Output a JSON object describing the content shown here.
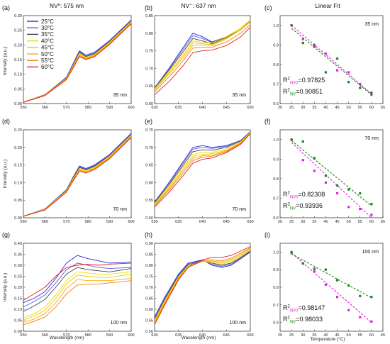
{
  "titles": {
    "col1": "NV⁰: 575 nm",
    "col2": "NV⁻: 637 nm",
    "col3": "Linear Fit"
  },
  "axis_labels": {
    "intensity": "Intensity (a.u.)",
    "wavelength": "Wavelength (nm)",
    "temperature": "Temperature (°C)"
  },
  "legend": {
    "entries": [
      "25°C",
      "30°C",
      "35°C",
      "40°C",
      "45°C",
      "50°C",
      "55°C",
      "60°C"
    ],
    "colors": [
      "#2a2ad8",
      "#5a5ae6",
      "#444444",
      "#e8e000",
      "#f0c800",
      "#f5b000",
      "#f08010",
      "#e02020"
    ]
  },
  "colors": {
    "nv0": "#e020e0",
    "nvm": "#1a8a1a"
  },
  "chart_data": [
    {
      "panel": "(a)",
      "type": "line",
      "thickness": "35 nm",
      "xlim": [
        550,
        600
      ],
      "ylim": [
        0,
        0.3
      ],
      "xticks": [
        550,
        560,
        570,
        580,
        590,
        600
      ],
      "yticks": [
        0,
        0.05,
        0.1,
        0.15,
        0.2,
        0.25,
        0.3
      ],
      "x": [
        550,
        560,
        570,
        573,
        576,
        579,
        583,
        590,
        600
      ],
      "series": [
        {
          "values": [
            0.005,
            0.03,
            0.09,
            0.135,
            0.18,
            0.165,
            0.175,
            0.215,
            0.285
          ]
        },
        {
          "values": [
            0.005,
            0.03,
            0.088,
            0.132,
            0.177,
            0.162,
            0.172,
            0.213,
            0.283
          ]
        },
        {
          "values": [
            0.005,
            0.03,
            0.087,
            0.13,
            0.174,
            0.16,
            0.17,
            0.212,
            0.282
          ]
        },
        {
          "values": [
            0.005,
            0.029,
            0.086,
            0.128,
            0.171,
            0.158,
            0.168,
            0.21,
            0.28
          ]
        },
        {
          "values": [
            0.005,
            0.029,
            0.085,
            0.126,
            0.168,
            0.156,
            0.166,
            0.208,
            0.278
          ]
        },
        {
          "values": [
            0.004,
            0.028,
            0.084,
            0.124,
            0.165,
            0.154,
            0.164,
            0.206,
            0.276
          ]
        },
        {
          "values": [
            0.004,
            0.028,
            0.083,
            0.122,
            0.162,
            0.152,
            0.162,
            0.204,
            0.274
          ]
        },
        {
          "values": [
            0.004,
            0.027,
            0.082,
            0.12,
            0.16,
            0.15,
            0.16,
            0.202,
            0.272
          ]
        }
      ]
    },
    {
      "panel": "(b)",
      "type": "line",
      "thickness": "35 nm",
      "xlim": [
        630,
        650
      ],
      "ylim": [
        0.6,
        0.85
      ],
      "xticks": [
        630,
        635,
        640,
        645,
        650
      ],
      "yticks": [
        0.6,
        0.65,
        0.7,
        0.75,
        0.8,
        0.85
      ],
      "x": [
        630,
        633,
        636,
        638,
        640,
        642,
        645,
        648,
        650
      ],
      "series": [
        {
          "values": [
            0.645,
            0.7,
            0.76,
            0.8,
            0.79,
            0.775,
            0.79,
            0.81,
            0.835
          ]
        },
        {
          "values": [
            0.645,
            0.698,
            0.755,
            0.793,
            0.785,
            0.773,
            0.789,
            0.81,
            0.834
          ]
        },
        {
          "values": [
            0.643,
            0.695,
            0.748,
            0.785,
            0.778,
            0.77,
            0.788,
            0.81,
            0.833
          ]
        },
        {
          "values": [
            0.642,
            0.692,
            0.742,
            0.778,
            0.774,
            0.772,
            0.79,
            0.815,
            0.838
          ]
        },
        {
          "values": [
            0.64,
            0.688,
            0.736,
            0.772,
            0.77,
            0.768,
            0.786,
            0.812,
            0.836
          ]
        },
        {
          "values": [
            0.638,
            0.684,
            0.73,
            0.766,
            0.766,
            0.765,
            0.783,
            0.81,
            0.834
          ]
        },
        {
          "values": [
            0.633,
            0.676,
            0.722,
            0.758,
            0.76,
            0.76,
            0.775,
            0.8,
            0.825
          ]
        },
        {
          "values": [
            0.625,
            0.662,
            0.708,
            0.745,
            0.75,
            0.752,
            0.765,
            0.79,
            0.817
          ]
        }
      ]
    },
    {
      "panel": "(c)",
      "type": "scatter",
      "thickness": "35 nm",
      "xlim": [
        20,
        65
      ],
      "ylim": [
        0.6,
        1.05
      ],
      "xticks": [
        20,
        25,
        30,
        35,
        40,
        45,
        50,
        55,
        60,
        65
      ],
      "yticks": [
        0.6,
        0.7,
        0.8,
        0.9,
        1.0
      ],
      "x": [
        25,
        30,
        35,
        40,
        45,
        50,
        55,
        60
      ],
      "series": [
        {
          "name": "NV0",
          "values": [
            1.0,
            0.93,
            0.89,
            0.855,
            0.77,
            0.76,
            0.7,
            0.645
          ],
          "fit": [
            1.0,
            0.65
          ],
          "r2": "=0.97825"
        },
        {
          "name": "NV-",
          "values": [
            1.0,
            0.91,
            0.9,
            0.76,
            0.83,
            0.71,
            0.68,
            0.655
          ],
          "fit": [
            0.985,
            0.645
          ],
          "r2": "=0.90851"
        }
      ]
    },
    {
      "panel": "(d)",
      "type": "line",
      "thickness": "70 nm",
      "xlim": [
        550,
        600
      ],
      "ylim": [
        0,
        0.25
      ],
      "xticks": [
        550,
        560,
        570,
        580,
        590,
        600
      ],
      "yticks": [
        0,
        0.05,
        0.1,
        0.15,
        0.2,
        0.25
      ],
      "x": [
        550,
        560,
        570,
        573,
        576,
        579,
        583,
        590,
        600
      ],
      "series": [
        {
          "values": [
            0.005,
            0.025,
            0.08,
            0.115,
            0.147,
            0.14,
            0.15,
            0.18,
            0.24
          ]
        },
        {
          "values": [
            0.005,
            0.025,
            0.079,
            0.113,
            0.145,
            0.138,
            0.148,
            0.178,
            0.238
          ]
        },
        {
          "values": [
            0.005,
            0.024,
            0.078,
            0.112,
            0.143,
            0.136,
            0.146,
            0.176,
            0.236
          ]
        },
        {
          "values": [
            0.005,
            0.024,
            0.077,
            0.11,
            0.14,
            0.134,
            0.144,
            0.175,
            0.235
          ]
        },
        {
          "values": [
            0.004,
            0.024,
            0.076,
            0.109,
            0.138,
            0.132,
            0.142,
            0.173,
            0.233
          ]
        },
        {
          "values": [
            0.004,
            0.023,
            0.075,
            0.107,
            0.136,
            0.13,
            0.14,
            0.171,
            0.231
          ]
        },
        {
          "values": [
            0.004,
            0.023,
            0.074,
            0.105,
            0.134,
            0.128,
            0.138,
            0.17,
            0.23
          ]
        },
        {
          "values": [
            0.004,
            0.022,
            0.073,
            0.104,
            0.132,
            0.127,
            0.137,
            0.168,
            0.228
          ]
        }
      ]
    },
    {
      "panel": "(e)",
      "type": "line",
      "thickness": "70 nm",
      "xlim": [
        630,
        650
      ],
      "ylim": [
        0.5,
        0.75
      ],
      "xticks": [
        630,
        635,
        640,
        645,
        650
      ],
      "yticks": [
        0.5,
        0.55,
        0.6,
        0.65,
        0.7,
        0.75
      ],
      "x": [
        630,
        633,
        636,
        638,
        640,
        642,
        645,
        648,
        650
      ],
      "series": [
        {
          "values": [
            0.545,
            0.6,
            0.66,
            0.7,
            0.705,
            0.7,
            0.705,
            0.72,
            0.745
          ]
        },
        {
          "values": [
            0.545,
            0.598,
            0.656,
            0.695,
            0.7,
            0.697,
            0.703,
            0.72,
            0.745
          ]
        },
        {
          "values": [
            0.543,
            0.594,
            0.65,
            0.688,
            0.693,
            0.692,
            0.7,
            0.718,
            0.744
          ]
        },
        {
          "values": [
            0.54,
            0.59,
            0.645,
            0.68,
            0.686,
            0.686,
            0.695,
            0.716,
            0.743
          ]
        },
        {
          "values": [
            0.538,
            0.586,
            0.64,
            0.674,
            0.68,
            0.682,
            0.692,
            0.714,
            0.742
          ]
        },
        {
          "values": [
            0.536,
            0.582,
            0.634,
            0.668,
            0.676,
            0.678,
            0.69,
            0.712,
            0.741
          ]
        },
        {
          "values": [
            0.533,
            0.578,
            0.628,
            0.662,
            0.672,
            0.675,
            0.688,
            0.711,
            0.74
          ]
        },
        {
          "values": [
            0.53,
            0.572,
            0.62,
            0.655,
            0.666,
            0.67,
            0.685,
            0.709,
            0.739
          ]
        }
      ]
    },
    {
      "panel": "(f)",
      "type": "scatter",
      "thickness": "70 nm",
      "xlim": [
        20,
        65
      ],
      "ylim": [
        0.6,
        1.05
      ],
      "xticks": [
        20,
        25,
        30,
        35,
        40,
        45,
        50,
        55,
        60,
        65
      ],
      "yticks": [
        0.6,
        0.7,
        0.8,
        0.9,
        1.0
      ],
      "x": [
        25,
        30,
        35,
        40,
        45,
        50,
        55,
        60
      ],
      "series": [
        {
          "name": "NV0",
          "values": [
            1.0,
            0.895,
            0.84,
            0.78,
            0.725,
            0.655,
            0.645,
            0.615
          ],
          "fit": [
            0.985,
            0.6
          ],
          "r2": "=0.82308"
        },
        {
          "name": "NV-",
          "values": [
            1.0,
            0.99,
            0.905,
            0.815,
            0.765,
            0.745,
            0.725,
            0.67
          ],
          "fit": [
            0.995,
            0.66
          ],
          "r2": "=0.93936"
        }
      ]
    },
    {
      "panel": "(g)",
      "type": "line",
      "thickness": "100 nm",
      "xlim": [
        550,
        600
      ],
      "ylim": [
        0,
        0.4
      ],
      "xticks": [
        550,
        560,
        570,
        580,
        590,
        600
      ],
      "yticks": [
        0,
        0.05,
        0.1,
        0.15,
        0.2,
        0.25,
        0.3,
        0.35,
        0.4
      ],
      "x": [
        550,
        555,
        560,
        565,
        570,
        575,
        580,
        585,
        590,
        600
      ],
      "series": [
        {
          "values": [
            0.13,
            0.15,
            0.18,
            0.24,
            0.31,
            0.345,
            0.33,
            0.32,
            0.31,
            0.315
          ]
        },
        {
          "values": [
            0.11,
            0.135,
            0.165,
            0.22,
            0.28,
            0.31,
            0.3,
            0.29,
            0.285,
            0.29
          ]
        },
        {
          "values": [
            0.09,
            0.115,
            0.145,
            0.2,
            0.26,
            0.29,
            0.28,
            0.275,
            0.27,
            0.285
          ]
        },
        {
          "values": [
            0.06,
            0.08,
            0.11,
            0.165,
            0.23,
            0.27,
            0.265,
            0.26,
            0.26,
            0.27
          ]
        },
        {
          "values": [
            0.05,
            0.07,
            0.095,
            0.15,
            0.215,
            0.255,
            0.25,
            0.245,
            0.245,
            0.26
          ]
        },
        {
          "values": [
            0.04,
            0.055,
            0.08,
            0.13,
            0.195,
            0.235,
            0.23,
            0.23,
            0.23,
            0.24
          ]
        },
        {
          "values": [
            0.03,
            0.045,
            0.065,
            0.11,
            0.17,
            0.21,
            0.215,
            0.215,
            0.22,
            0.23
          ]
        },
        {
          "values": [
            0.14,
            0.17,
            0.2,
            0.25,
            0.29,
            0.3,
            0.305,
            0.3,
            0.305,
            0.31
          ]
        }
      ]
    },
    {
      "panel": "(h)",
      "type": "line",
      "thickness": "100 nm",
      "xlim": [
        630,
        650
      ],
      "ylim": [
        0.5,
        0.9
      ],
      "xticks": [
        630,
        635,
        640,
        645,
        650
      ],
      "yticks": [
        0.5,
        0.55,
        0.6,
        0.65,
        0.7,
        0.75,
        0.8,
        0.85,
        0.9
      ],
      "x": [
        630,
        632,
        635,
        637,
        640,
        642,
        644,
        646,
        648,
        650
      ],
      "series": [
        {
          "values": [
            0.565,
            0.65,
            0.76,
            0.81,
            0.825,
            0.8,
            0.79,
            0.8,
            0.83,
            0.86
          ]
        },
        {
          "values": [
            0.56,
            0.645,
            0.756,
            0.806,
            0.822,
            0.805,
            0.795,
            0.805,
            0.832,
            0.862
          ]
        },
        {
          "values": [
            0.555,
            0.64,
            0.752,
            0.802,
            0.82,
            0.81,
            0.8,
            0.81,
            0.835,
            0.865
          ]
        },
        {
          "values": [
            0.55,
            0.635,
            0.748,
            0.798,
            0.818,
            0.812,
            0.805,
            0.815,
            0.84,
            0.868
          ]
        },
        {
          "values": [
            0.545,
            0.63,
            0.744,
            0.795,
            0.818,
            0.816,
            0.81,
            0.82,
            0.845,
            0.872
          ]
        },
        {
          "values": [
            0.54,
            0.625,
            0.74,
            0.792,
            0.818,
            0.82,
            0.815,
            0.826,
            0.85,
            0.876
          ]
        },
        {
          "values": [
            0.535,
            0.62,
            0.737,
            0.79,
            0.82,
            0.825,
            0.82,
            0.832,
            0.856,
            0.88
          ]
        },
        {
          "values": [
            0.53,
            0.615,
            0.734,
            0.79,
            0.825,
            0.835,
            0.835,
            0.845,
            0.865,
            0.885
          ]
        }
      ]
    },
    {
      "panel": "(i)",
      "type": "scatter",
      "thickness": "100 nm",
      "xlim": [
        20,
        65
      ],
      "ylim": [
        0.55,
        1.05
      ],
      "xticks": [
        20,
        25,
        30,
        35,
        40,
        45,
        50,
        55,
        60,
        65
      ],
      "yticks": [
        0.6,
        0.7,
        0.8,
        0.9,
        1.0
      ],
      "x": [
        25,
        30,
        35,
        40,
        45,
        50,
        55,
        60
      ],
      "series": [
        {
          "name": "NV0",
          "values": [
            0.995,
            0.935,
            0.89,
            0.815,
            0.745,
            0.67,
            0.63,
            0.605
          ],
          "fit": [
            0.995,
            0.6
          ],
          "r2": "=0.98147"
        },
        {
          "name": "NV-",
          "values": [
            1.0,
            0.935,
            0.905,
            0.9,
            0.84,
            0.81,
            0.75,
            0.745
          ],
          "fit": [
            0.99,
            0.74
          ],
          "r2": "=0.98033"
        }
      ]
    }
  ]
}
